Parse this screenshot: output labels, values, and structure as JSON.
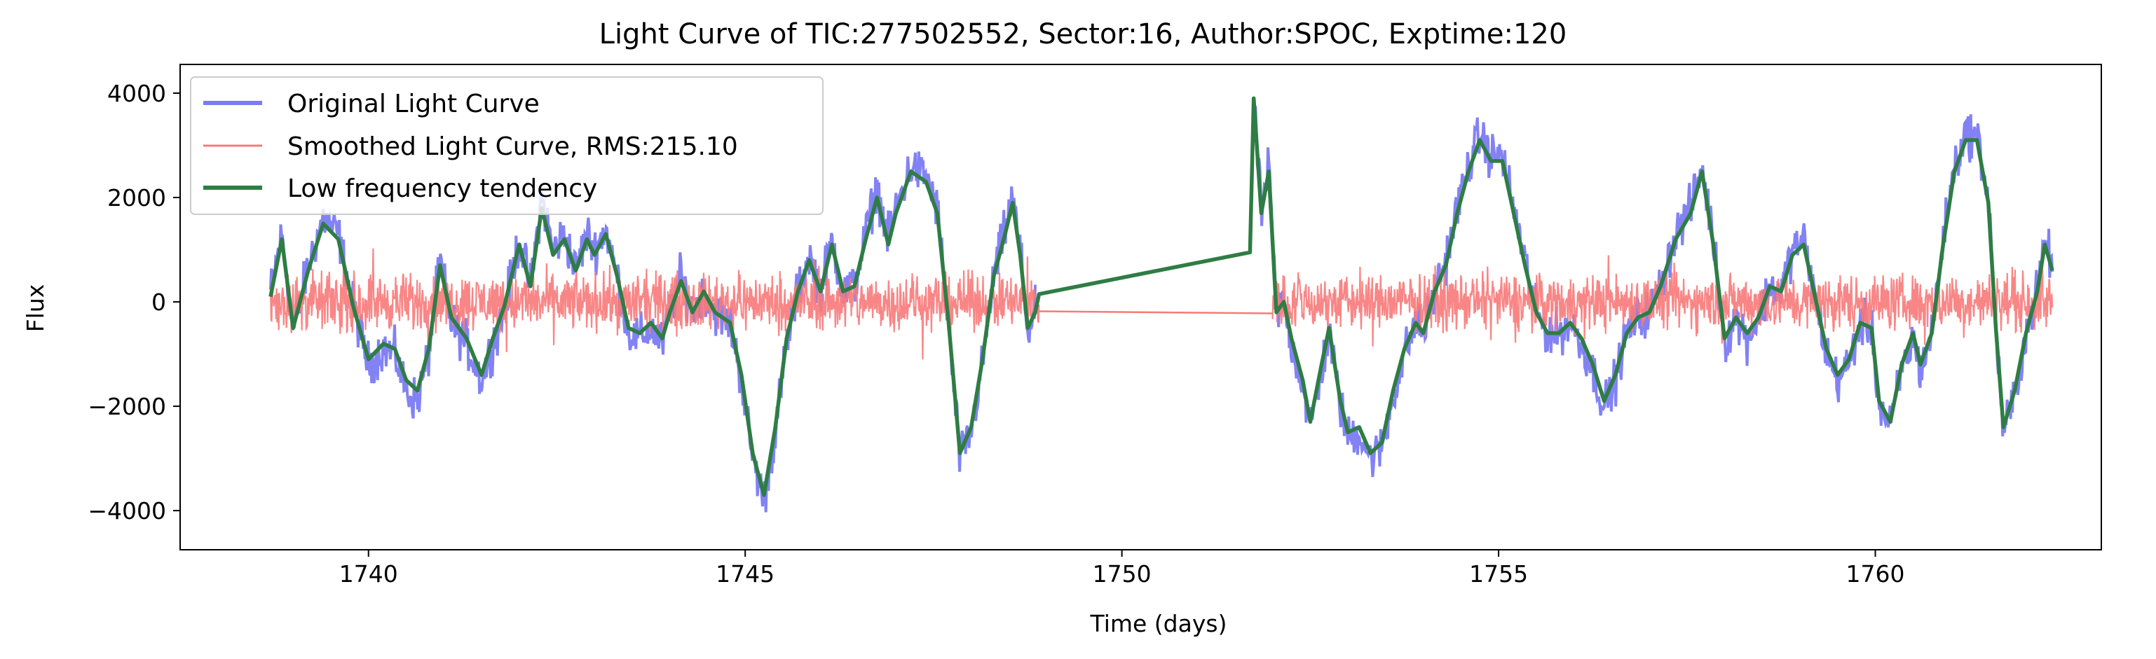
{
  "chart_data": {
    "type": "line",
    "title": "Light Curve of TIC:277502552, Sector:16, Author:SPOC, Exptime:120",
    "xlabel": "Time (days)",
    "ylabel": "Flux",
    "xlim": [
      1737.5,
      1763.0
    ],
    "ylim": [
      -4750,
      4550
    ],
    "xticks": [
      1740,
      1745,
      1750,
      1755,
      1760
    ],
    "yticks": [
      -4000,
      -2000,
      0,
      2000,
      4000
    ],
    "xtick_labels": [
      "1740",
      "1745",
      "1750",
      "1755",
      "1760"
    ],
    "ytick_labels": [
      "−4000",
      "−2000",
      "0",
      "2000",
      "4000"
    ],
    "grid": false,
    "legend_position": "top-left",
    "series": [
      {
        "name": "Original Light Curve",
        "color": "#7b7bf4",
        "points": [
          [
            1738.7,
            200
          ],
          [
            1738.85,
            1300
          ],
          [
            1739.0,
            -600
          ],
          [
            1739.2,
            700
          ],
          [
            1739.4,
            1600
          ],
          [
            1739.6,
            1300
          ],
          [
            1739.8,
            -100
          ],
          [
            1740.0,
            -1200
          ],
          [
            1740.2,
            -900
          ],
          [
            1740.35,
            -1000
          ],
          [
            1740.5,
            -1700
          ],
          [
            1740.65,
            -1900
          ],
          [
            1740.8,
            -1000
          ],
          [
            1740.95,
            800
          ],
          [
            1741.1,
            -400
          ],
          [
            1741.3,
            -800
          ],
          [
            1741.5,
            -1500
          ],
          [
            1741.65,
            -800
          ],
          [
            1741.8,
            -200
          ],
          [
            1742.0,
            1200
          ],
          [
            1742.15,
            300
          ],
          [
            1742.3,
            2000
          ],
          [
            1742.45,
            1000
          ],
          [
            1742.6,
            1300
          ],
          [
            1742.75,
            600
          ],
          [
            1742.9,
            1300
          ],
          [
            1743.0,
            1000
          ],
          [
            1743.15,
            1400
          ],
          [
            1743.3,
            500
          ],
          [
            1743.45,
            -600
          ],
          [
            1743.6,
            -700
          ],
          [
            1743.75,
            -500
          ],
          [
            1743.9,
            -800
          ],
          [
            1744.0,
            -200
          ],
          [
            1744.15,
            500
          ],
          [
            1744.3,
            -200
          ],
          [
            1744.45,
            200
          ],
          [
            1744.6,
            -200
          ],
          [
            1744.8,
            -400
          ],
          [
            1744.95,
            -1500
          ],
          [
            1745.1,
            -3000
          ],
          [
            1745.25,
            -3800
          ],
          [
            1745.4,
            -2500
          ],
          [
            1745.55,
            -800
          ],
          [
            1745.7,
            200
          ],
          [
            1745.85,
            900
          ],
          [
            1746.0,
            200
          ],
          [
            1746.15,
            1200
          ],
          [
            1746.3,
            200
          ],
          [
            1746.45,
            300
          ],
          [
            1746.6,
            1300
          ],
          [
            1746.75,
            2200
          ],
          [
            1746.9,
            1200
          ],
          [
            1747.0,
            1800
          ],
          [
            1747.2,
            2600
          ],
          [
            1747.4,
            2400
          ],
          [
            1747.55,
            1800
          ],
          [
            1747.7,
            -500
          ],
          [
            1747.85,
            -3000
          ],
          [
            1748.0,
            -2500
          ],
          [
            1748.15,
            -1200
          ],
          [
            1748.3,
            500
          ],
          [
            1748.45,
            1400
          ],
          [
            1748.55,
            2000
          ],
          [
            1748.65,
            1000
          ],
          [
            1748.75,
            -600
          ],
          [
            1748.85,
            -200
          ]
        ],
        "points_b": [
          [
            1751.75,
            3900
          ],
          [
            1751.85,
            1700
          ],
          [
            1751.95,
            2600
          ],
          [
            1752.05,
            -200
          ],
          [
            1752.15,
            0
          ],
          [
            1752.25,
            -800
          ],
          [
            1752.4,
            -1600
          ],
          [
            1752.5,
            -2400
          ],
          [
            1752.65,
            -1300
          ],
          [
            1752.75,
            -600
          ],
          [
            1752.9,
            -2000
          ],
          [
            1753.0,
            -2600
          ],
          [
            1753.15,
            -2500
          ],
          [
            1753.3,
            -3000
          ],
          [
            1753.45,
            -2800
          ],
          [
            1753.6,
            -1800
          ],
          [
            1753.75,
            -1000
          ],
          [
            1753.9,
            -400
          ],
          [
            1754.0,
            -600
          ],
          [
            1754.15,
            200
          ],
          [
            1754.3,
            800
          ],
          [
            1754.45,
            1800
          ],
          [
            1754.6,
            2600
          ],
          [
            1754.75,
            3200
          ],
          [
            1754.9,
            2800
          ],
          [
            1755.05,
            2800
          ],
          [
            1755.2,
            1800
          ],
          [
            1755.35,
            800
          ],
          [
            1755.5,
            -200
          ],
          [
            1755.65,
            -600
          ],
          [
            1755.8,
            -600
          ],
          [
            1755.95,
            -400
          ],
          [
            1756.1,
            -800
          ],
          [
            1756.25,
            -1300
          ],
          [
            1756.4,
            -2000
          ],
          [
            1756.55,
            -1500
          ],
          [
            1756.7,
            -600
          ],
          [
            1756.85,
            -300
          ],
          [
            1757.0,
            -200
          ],
          [
            1757.15,
            300
          ],
          [
            1757.35,
            1300
          ],
          [
            1757.55,
            1800
          ],
          [
            1757.7,
            2600
          ],
          [
            1757.85,
            1200
          ],
          [
            1758.0,
            -800
          ],
          [
            1758.15,
            -300
          ],
          [
            1758.3,
            -700
          ],
          [
            1758.45,
            -300
          ],
          [
            1758.6,
            300
          ],
          [
            1758.75,
            200
          ],
          [
            1758.9,
            1000
          ],
          [
            1759.05,
            1200
          ],
          [
            1759.2,
            100
          ],
          [
            1759.35,
            -1000
          ],
          [
            1759.5,
            -1500
          ],
          [
            1759.65,
            -1200
          ],
          [
            1759.8,
            -400
          ],
          [
            1759.95,
            -500
          ],
          [
            1760.05,
            -2000
          ],
          [
            1760.2,
            -2400
          ],
          [
            1760.35,
            -1300
          ],
          [
            1760.5,
            -700
          ],
          [
            1760.6,
            -1300
          ],
          [
            1760.75,
            -600
          ],
          [
            1760.9,
            1200
          ],
          [
            1761.05,
            2600
          ],
          [
            1761.2,
            3200
          ],
          [
            1761.35,
            3200
          ],
          [
            1761.5,
            2000
          ],
          [
            1761.6,
            -500
          ],
          [
            1761.7,
            -2500
          ],
          [
            1761.85,
            -1800
          ],
          [
            1762.0,
            -600
          ],
          [
            1762.15,
            200
          ],
          [
            1762.25,
            1200
          ],
          [
            1762.35,
            700
          ]
        ]
      },
      {
        "name": "Smoothed Light Curve, RMS:215.10",
        "color": "#f87979",
        "rms": 215.1,
        "x_range_a": [
          1738.7,
          1748.9
        ],
        "x_range_b": [
          1752.0,
          1762.35
        ],
        "gap_line": [
          [
            1748.9,
            -180
          ],
          [
            1752.0,
            -220
          ]
        ]
      },
      {
        "name": "Low frequency tendency",
        "color": "#2e7d44",
        "points": [
          [
            1738.7,
            100
          ],
          [
            1738.85,
            1200
          ],
          [
            1739.0,
            -500
          ],
          [
            1739.2,
            600
          ],
          [
            1739.4,
            1500
          ],
          [
            1739.6,
            1200
          ],
          [
            1739.8,
            -100
          ],
          [
            1740.0,
            -1100
          ],
          [
            1740.2,
            -800
          ],
          [
            1740.35,
            -900
          ],
          [
            1740.5,
            -1500
          ],
          [
            1740.65,
            -1700
          ],
          [
            1740.8,
            -900
          ],
          [
            1740.95,
            700
          ],
          [
            1741.1,
            -300
          ],
          [
            1741.3,
            -700
          ],
          [
            1741.5,
            -1400
          ],
          [
            1741.65,
            -700
          ],
          [
            1741.8,
            -100
          ],
          [
            1742.0,
            1100
          ],
          [
            1742.15,
            300
          ],
          [
            1742.3,
            1800
          ],
          [
            1742.45,
            900
          ],
          [
            1742.6,
            1200
          ],
          [
            1742.75,
            600
          ],
          [
            1742.9,
            1200
          ],
          [
            1743.0,
            900
          ],
          [
            1743.15,
            1300
          ],
          [
            1743.3,
            500
          ],
          [
            1743.45,
            -500
          ],
          [
            1743.6,
            -600
          ],
          [
            1743.75,
            -400
          ],
          [
            1743.9,
            -700
          ],
          [
            1744.0,
            -200
          ],
          [
            1744.15,
            400
          ],
          [
            1744.3,
            -200
          ],
          [
            1744.45,
            200
          ],
          [
            1744.6,
            -200
          ],
          [
            1744.8,
            -400
          ],
          [
            1744.95,
            -1400
          ],
          [
            1745.1,
            -2900
          ],
          [
            1745.25,
            -3700
          ],
          [
            1745.4,
            -2400
          ],
          [
            1745.55,
            -700
          ],
          [
            1745.7,
            200
          ],
          [
            1745.85,
            800
          ],
          [
            1746.0,
            200
          ],
          [
            1746.15,
            1100
          ],
          [
            1746.3,
            200
          ],
          [
            1746.45,
            300
          ],
          [
            1746.6,
            1200
          ],
          [
            1746.75,
            2000
          ],
          [
            1746.9,
            1100
          ],
          [
            1747.0,
            1700
          ],
          [
            1747.2,
            2500
          ],
          [
            1747.4,
            2300
          ],
          [
            1747.55,
            1700
          ],
          [
            1747.7,
            -400
          ],
          [
            1747.85,
            -2900
          ],
          [
            1748.0,
            -2400
          ],
          [
            1748.15,
            -1100
          ],
          [
            1748.3,
            500
          ],
          [
            1748.45,
            1300
          ],
          [
            1748.55,
            1900
          ],
          [
            1748.65,
            900
          ],
          [
            1748.75,
            -500
          ],
          [
            1748.85,
            -200
          ],
          [
            1748.9,
            150
          ],
          [
            1751.7,
            950
          ],
          [
            1751.75,
            3900
          ],
          [
            1751.85,
            1700
          ],
          [
            1751.95,
            2500
          ],
          [
            1752.05,
            -200
          ],
          [
            1752.15,
            0
          ],
          [
            1752.25,
            -700
          ],
          [
            1752.4,
            -1500
          ],
          [
            1752.5,
            -2300
          ],
          [
            1752.65,
            -1200
          ],
          [
            1752.75,
            -500
          ],
          [
            1752.9,
            -1900
          ],
          [
            1753.0,
            -2500
          ],
          [
            1753.15,
            -2400
          ],
          [
            1753.3,
            -2900
          ],
          [
            1753.45,
            -2700
          ],
          [
            1753.6,
            -1700
          ],
          [
            1753.75,
            -900
          ],
          [
            1753.9,
            -400
          ],
          [
            1754.0,
            -600
          ],
          [
            1754.15,
            200
          ],
          [
            1754.3,
            700
          ],
          [
            1754.45,
            1700
          ],
          [
            1754.6,
            2500
          ],
          [
            1754.75,
            3100
          ],
          [
            1754.9,
            2700
          ],
          [
            1755.05,
            2700
          ],
          [
            1755.2,
            1700
          ],
          [
            1755.35,
            700
          ],
          [
            1755.5,
            -200
          ],
          [
            1755.65,
            -600
          ],
          [
            1755.8,
            -600
          ],
          [
            1755.95,
            -400
          ],
          [
            1756.1,
            -700
          ],
          [
            1756.25,
            -1200
          ],
          [
            1756.4,
            -1900
          ],
          [
            1756.55,
            -1400
          ],
          [
            1756.7,
            -600
          ],
          [
            1756.85,
            -300
          ],
          [
            1757.0,
            -200
          ],
          [
            1757.15,
            300
          ],
          [
            1757.35,
            1200
          ],
          [
            1757.55,
            1700
          ],
          [
            1757.7,
            2500
          ],
          [
            1757.85,
            1100
          ],
          [
            1758.0,
            -700
          ],
          [
            1758.15,
            -300
          ],
          [
            1758.3,
            -600
          ],
          [
            1758.45,
            -300
          ],
          [
            1758.6,
            300
          ],
          [
            1758.75,
            200
          ],
          [
            1758.9,
            900
          ],
          [
            1759.05,
            1100
          ],
          [
            1759.2,
            100
          ],
          [
            1759.35,
            -900
          ],
          [
            1759.5,
            -1400
          ],
          [
            1759.65,
            -1100
          ],
          [
            1759.8,
            -400
          ],
          [
            1759.95,
            -500
          ],
          [
            1760.05,
            -1900
          ],
          [
            1760.2,
            -2300
          ],
          [
            1760.35,
            -1200
          ],
          [
            1760.5,
            -600
          ],
          [
            1760.6,
            -1200
          ],
          [
            1760.75,
            -600
          ],
          [
            1760.9,
            1100
          ],
          [
            1761.05,
            2500
          ],
          [
            1761.2,
            3100
          ],
          [
            1761.35,
            3100
          ],
          [
            1761.5,
            1900
          ],
          [
            1761.6,
            -500
          ],
          [
            1761.7,
            -2400
          ],
          [
            1761.85,
            -1700
          ],
          [
            1762.0,
            -600
          ],
          [
            1762.15,
            200
          ],
          [
            1762.25,
            1100
          ],
          [
            1762.35,
            600
          ]
        ]
      }
    ]
  }
}
